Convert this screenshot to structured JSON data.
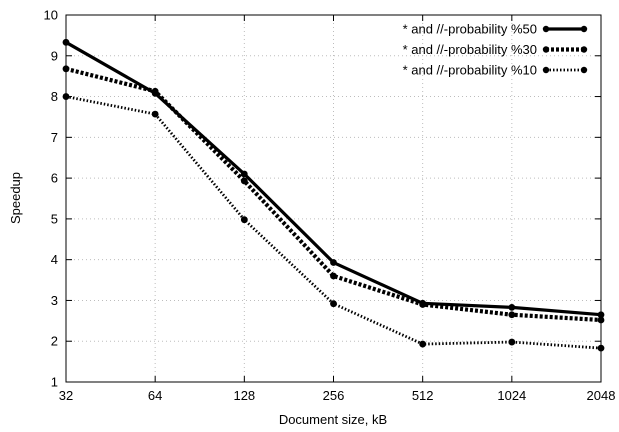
{
  "chart_data": {
    "type": "line",
    "xlabel": "Document size, kB",
    "ylabel": "Speedup",
    "categories": [
      "32",
      "64",
      "128",
      "256",
      "512",
      "1024",
      "2048"
    ],
    "ylim": [
      1,
      10
    ],
    "yticks": [
      1,
      2,
      3,
      4,
      5,
      6,
      7,
      8,
      9,
      10
    ],
    "grid": true,
    "legend_position": "top-right",
    "series": [
      {
        "name": "* and //-probability %50",
        "style": "solid",
        "color": "#000000",
        "values": [
          9.33,
          8.08,
          6.1,
          3.93,
          2.93,
          2.83,
          2.65
        ]
      },
      {
        "name": "* and //-probability %30",
        "style": "dashed",
        "color": "#000000",
        "values": [
          8.68,
          8.13,
          5.93,
          3.6,
          2.9,
          2.65,
          2.52
        ]
      },
      {
        "name": "* and //-probability %10",
        "style": "dotted",
        "color": "#000000",
        "values": [
          8.0,
          7.57,
          4.98,
          2.92,
          1.93,
          1.98,
          1.83
        ]
      }
    ]
  }
}
